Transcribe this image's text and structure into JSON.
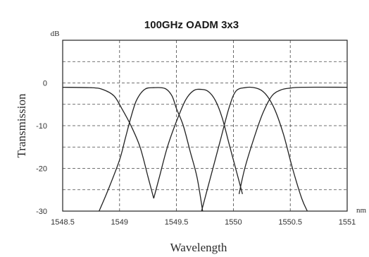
{
  "chart_data": {
    "type": "line",
    "title": "100GHz OADM 3x3",
    "xlabel": "Wavelength",
    "ylabel": "Transmission",
    "x_unit": "nm",
    "y_unit": "dB",
    "xlim": [
      1548.5,
      1551
    ],
    "ylim": [
      -30,
      10
    ],
    "x_ticks": [
      "1548.5",
      "1549",
      "1549.5",
      "1550",
      "1550.5",
      "1551"
    ],
    "y_ticks": [
      "0",
      "-10",
      "-20",
      "-30"
    ],
    "grid": true,
    "series": [
      {
        "color": "#222222",
        "points": [
          [
            1548.5,
            -1.0
          ],
          [
            1548.75,
            -1.1
          ],
          [
            1548.85,
            -1.5
          ],
          [
            1548.95,
            -3
          ],
          [
            1549.02,
            -6
          ],
          [
            1549.1,
            -10
          ],
          [
            1549.18,
            -15
          ],
          [
            1549.25,
            -22
          ],
          [
            1549.3,
            -27
          ]
        ]
      },
      {
        "color": "#222222",
        "points": [
          [
            1548.82,
            -30
          ],
          [
            1548.9,
            -25
          ],
          [
            1549.0,
            -18
          ],
          [
            1549.05,
            -13
          ],
          [
            1549.1,
            -8
          ],
          [
            1549.15,
            -4
          ],
          [
            1549.22,
            -1.5
          ],
          [
            1549.3,
            -1.1
          ],
          [
            1549.4,
            -1.3
          ],
          [
            1549.46,
            -3
          ],
          [
            1549.5,
            -6
          ],
          [
            1549.56,
            -10
          ],
          [
            1549.62,
            -16
          ],
          [
            1549.68,
            -22
          ],
          [
            1549.73,
            -30
          ]
        ]
      },
      {
        "color": "#222222",
        "points": [
          [
            1549.3,
            -27
          ],
          [
            1549.35,
            -22
          ],
          [
            1549.42,
            -15
          ],
          [
            1549.5,
            -9
          ],
          [
            1549.58,
            -4
          ],
          [
            1549.65,
            -1.8
          ],
          [
            1549.72,
            -1.5
          ],
          [
            1549.78,
            -2
          ],
          [
            1549.84,
            -4
          ],
          [
            1549.9,
            -8
          ],
          [
            1549.96,
            -14
          ],
          [
            1550.02,
            -20
          ],
          [
            1550.08,
            -26
          ]
        ]
      },
      {
        "color": "#222222",
        "points": [
          [
            1549.72,
            -30
          ],
          [
            1549.8,
            -22
          ],
          [
            1549.88,
            -14
          ],
          [
            1549.96,
            -6
          ],
          [
            1550.02,
            -2
          ],
          [
            1550.1,
            -1.1
          ],
          [
            1550.2,
            -1.2
          ],
          [
            1550.28,
            -2.5
          ],
          [
            1550.36,
            -6
          ],
          [
            1550.44,
            -12
          ],
          [
            1550.52,
            -20
          ],
          [
            1550.6,
            -27
          ],
          [
            1550.65,
            -30
          ]
        ]
      },
      {
        "color": "#222222",
        "points": [
          [
            1550.05,
            -26
          ],
          [
            1550.1,
            -20
          ],
          [
            1550.18,
            -13
          ],
          [
            1550.26,
            -7
          ],
          [
            1550.34,
            -3
          ],
          [
            1550.42,
            -1.6
          ],
          [
            1550.5,
            -1.2
          ],
          [
            1550.6,
            -1.0
          ],
          [
            1551.0,
            -1.0
          ]
        ]
      }
    ]
  }
}
